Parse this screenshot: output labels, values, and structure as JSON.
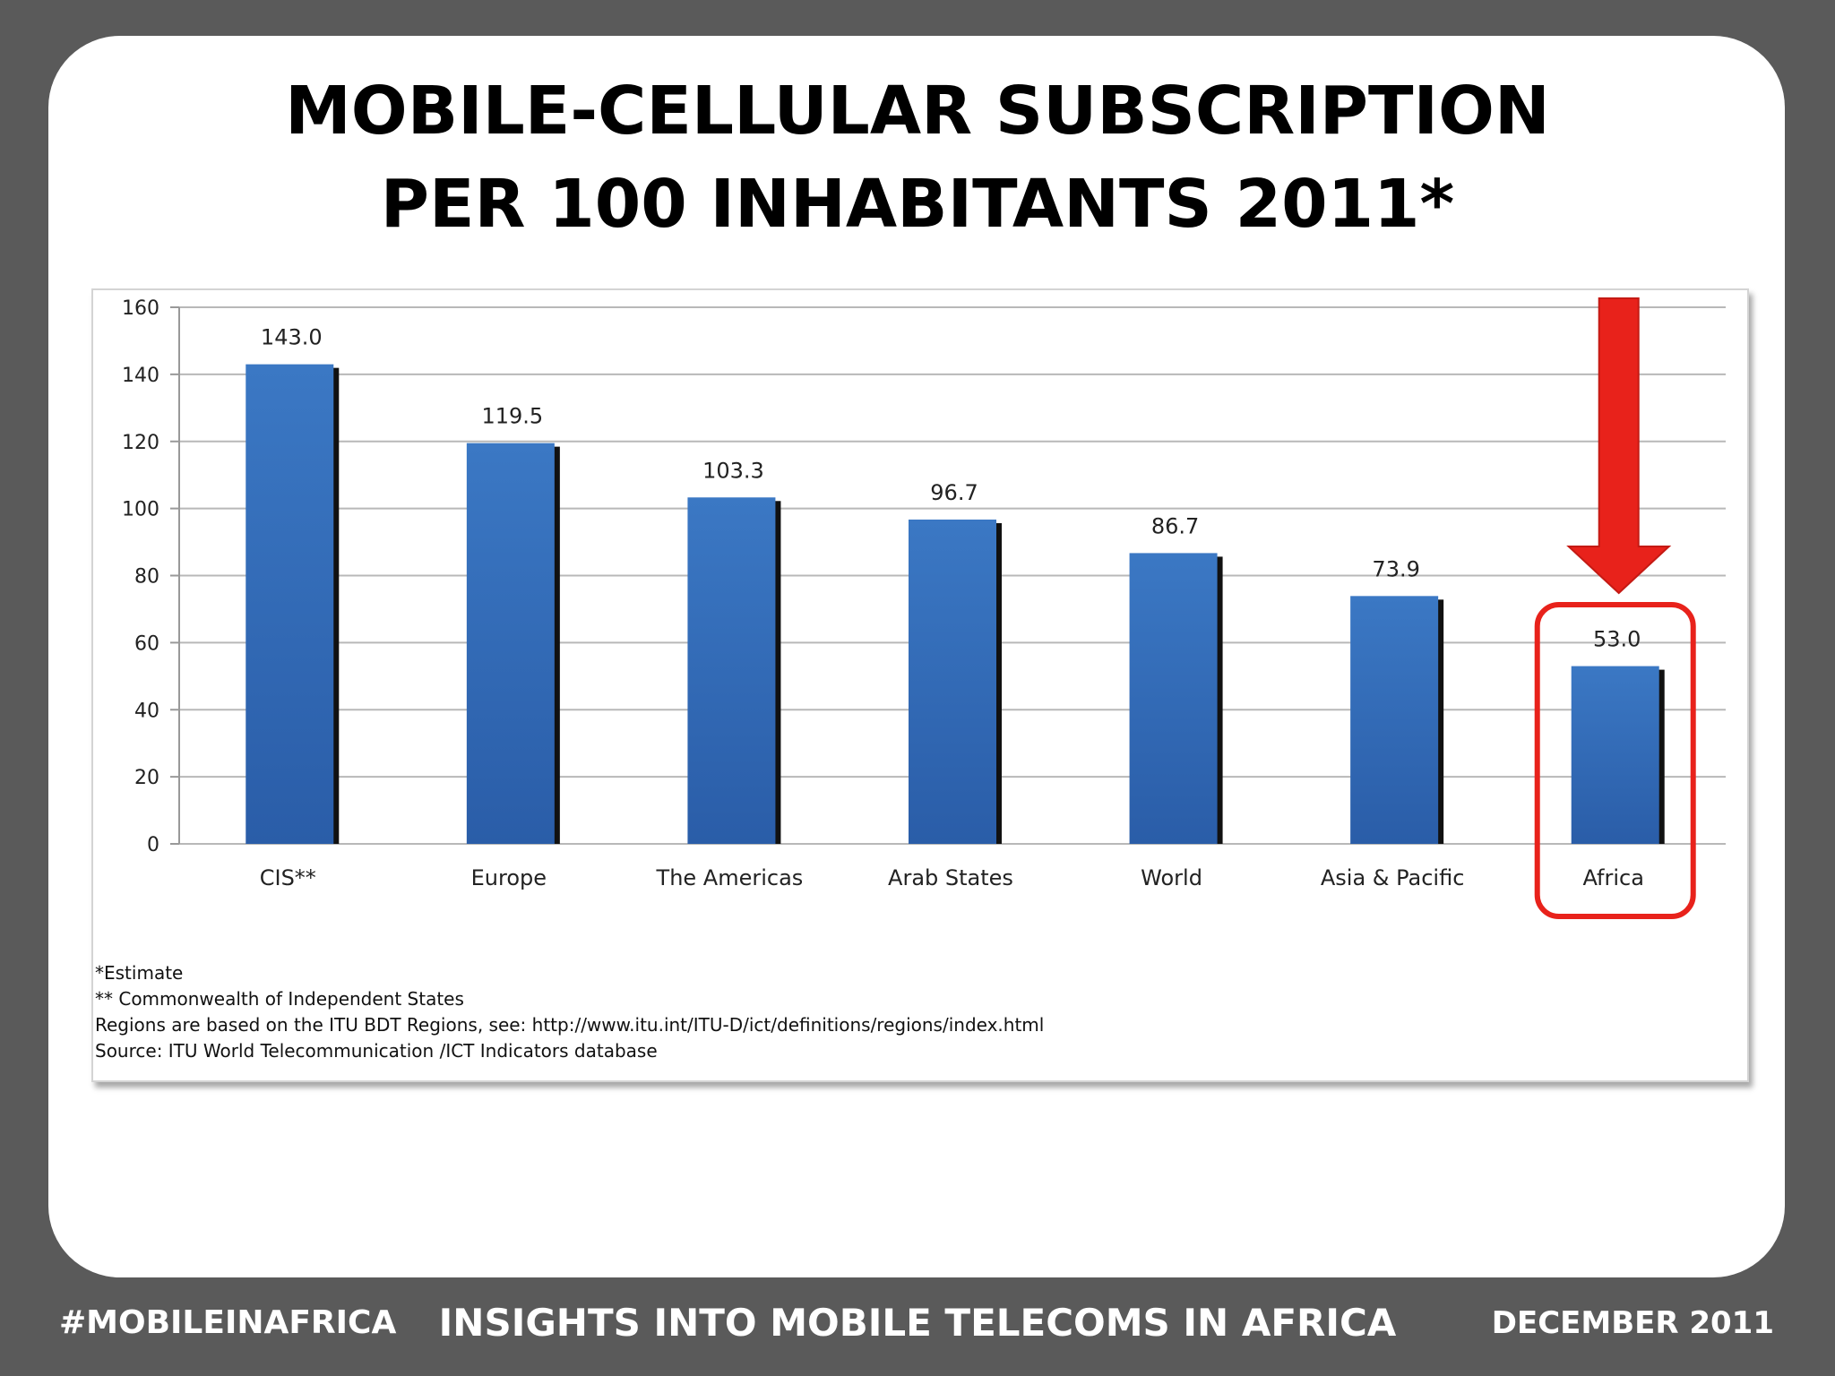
{
  "slide": {
    "title_line1": "MOBILE-CELLULAR SUBSCRIPTION",
    "title_line2": "PER 100 INHABITANTS 2011*"
  },
  "chart_data": {
    "type": "bar",
    "categories": [
      "CIS**",
      "Europe",
      "The Americas",
      "Arab States",
      "World",
      "Asia & Pacific",
      "Africa"
    ],
    "values": [
      143.0,
      119.5,
      103.3,
      96.7,
      86.7,
      73.9,
      53.0
    ],
    "value_labels": [
      "143.0",
      "119.5",
      "103.3",
      "96.7",
      "86.7",
      "73.9",
      "53.0"
    ],
    "ylim": [
      0,
      160
    ],
    "yticks": [
      "0",
      "20",
      "40",
      "60",
      "80",
      "100",
      "120",
      "140",
      "160"
    ],
    "grid": true,
    "bar_color": "#3b78c4",
    "highlight": {
      "category": "Africa",
      "color": "#e8221b",
      "marker": "down-arrow-icon"
    }
  },
  "notes": [
    "*Estimate",
    "** Commonwealth of Independent States",
    "Regions are based on the ITU BDT Regions, see: http://www.itu.int/ITU-D/ict/definitions/regions/index.html",
    "Source:  ITU World Telecommunication /ICT Indicators database"
  ],
  "footer": {
    "hashtag": "#MOBILEINAFRICA",
    "tagline": "INSIGHTS INTO MOBILE TELECOMS IN AFRICA",
    "date": "DECEMBER 2011"
  }
}
